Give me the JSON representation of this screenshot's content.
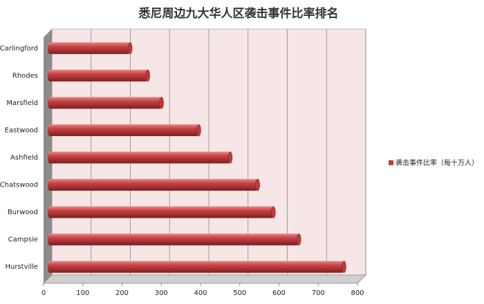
{
  "chart_data": {
    "type": "bar",
    "orientation": "horizontal",
    "title": "悉尼周边九大华人区袭击事件比率排名",
    "categories": [
      "Carlingford",
      "Rhodes",
      "Marsfield",
      "Eastwood",
      "Ashfield",
      "Chatswood",
      "Burwood",
      "Campsie",
      "Hurstville"
    ],
    "series": [
      {
        "name": "袭击事件比率（每十万人）",
        "color": "#c0393b",
        "values": [
          210,
          255,
          290,
          385,
          465,
          535,
          575,
          640,
          755
        ]
      }
    ],
    "xlim": [
      0,
      800
    ],
    "xticks": [
      0,
      100,
      200,
      300,
      400,
      500,
      600,
      700,
      800
    ],
    "grid": true,
    "legend": "right"
  }
}
